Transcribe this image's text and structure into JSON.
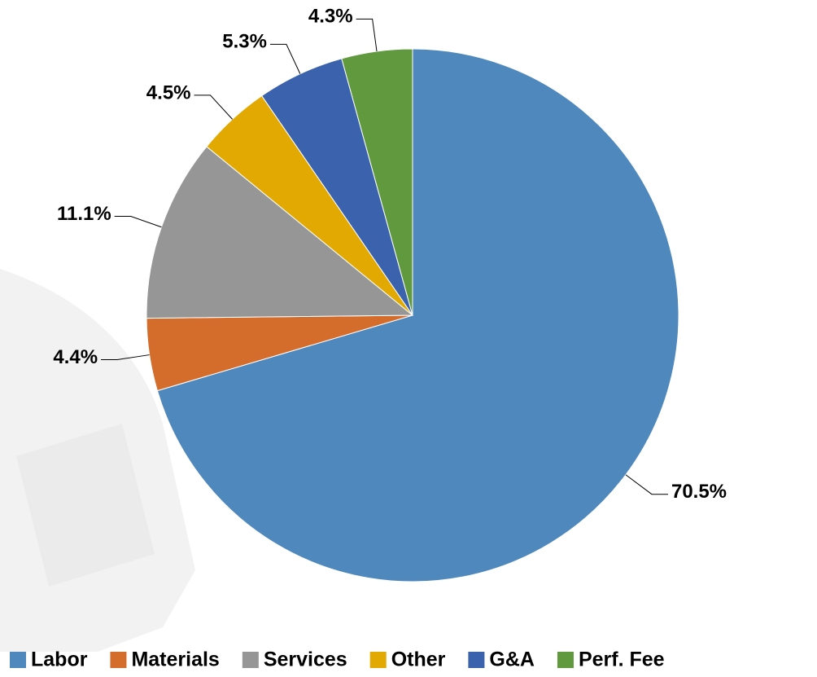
{
  "chart_data": {
    "type": "pie",
    "categories": [
      "Labor",
      "Materials",
      "Services",
      "Other",
      "G&A",
      "Perf. Fee"
    ],
    "values": [
      70.5,
      4.4,
      11.1,
      4.5,
      5.3,
      4.3
    ],
    "value_labels": [
      "70.5%",
      "4.4%",
      "11.1%",
      "4.5%",
      "5.3%",
      "4.3%"
    ],
    "colors": [
      "#4f88bd",
      "#d46c2b",
      "#969696",
      "#e2a903",
      "#3b62ac",
      "#619a3e"
    ],
    "legend": "bottom"
  }
}
